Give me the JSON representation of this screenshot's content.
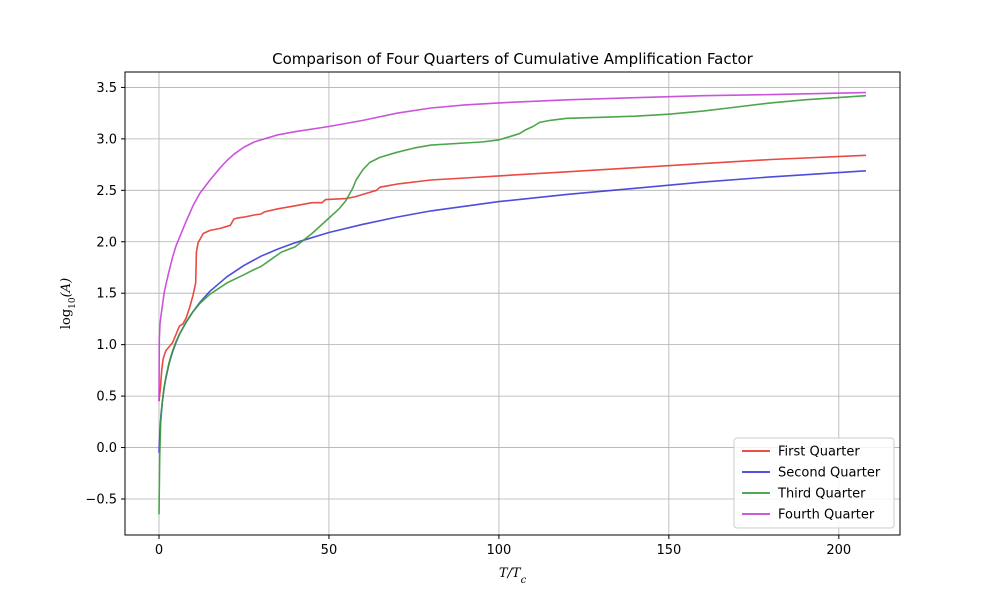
{
  "chart_data": {
    "type": "line",
    "title": "Comparison of Four Quarters of Cumulative Amplification Factor",
    "xlabel": "T/Tc",
    "ylabel": "log10(A)",
    "xlim": [
      -10,
      218
    ],
    "ylim": [
      -0.85,
      3.65
    ],
    "xticks": [
      0,
      50,
      100,
      150,
      200
    ],
    "yticks": [
      -0.5,
      0.0,
      0.5,
      1.0,
      1.5,
      2.0,
      2.5,
      3.0,
      3.5
    ],
    "ytick_labels": [
      "−0.5",
      "0.0",
      "0.5",
      "1.0",
      "1.5",
      "2.0",
      "2.5",
      "3.0",
      "3.5"
    ],
    "grid": true,
    "legend_position": "lower-right",
    "series": [
      {
        "name": "First Quarter",
        "color": "#e8362c",
        "x": [
          0,
          0.4,
          0.8,
          1.2,
          1.6,
          2,
          3,
          4,
          5,
          6,
          7,
          8,
          9,
          10,
          10.8,
          11.0,
          11.5,
          12,
          13,
          15,
          18,
          20,
          21,
          22,
          23,
          25,
          28,
          30,
          31,
          35,
          40,
          45,
          48,
          49,
          55,
          58,
          60,
          62,
          64,
          65,
          70,
          80,
          90,
          100,
          120,
          140,
          160,
          180,
          208
        ],
        "y": [
          0.45,
          0.58,
          0.75,
          0.86,
          0.9,
          0.94,
          0.98,
          1.02,
          1.1,
          1.18,
          1.2,
          1.26,
          1.36,
          1.48,
          1.6,
          1.9,
          1.99,
          2.02,
          2.08,
          2.11,
          2.13,
          2.15,
          2.16,
          2.22,
          2.23,
          2.24,
          2.26,
          2.27,
          2.29,
          2.32,
          2.35,
          2.38,
          2.38,
          2.41,
          2.42,
          2.44,
          2.46,
          2.48,
          2.5,
          2.53,
          2.56,
          2.6,
          2.62,
          2.64,
          2.68,
          2.72,
          2.76,
          2.8,
          2.84
        ]
      },
      {
        "name": "Second Quarter",
        "color": "#3a3ad8",
        "x": [
          0,
          0.3,
          0.6,
          1,
          1.5,
          2,
          3,
          4,
          5,
          6,
          8,
          10,
          12,
          15,
          20,
          25,
          30,
          35,
          40,
          50,
          60,
          70,
          80,
          100,
          120,
          140,
          160,
          180,
          208
        ],
        "y": [
          -0.05,
          0.18,
          0.32,
          0.45,
          0.58,
          0.67,
          0.82,
          0.93,
          1.02,
          1.1,
          1.22,
          1.32,
          1.41,
          1.52,
          1.66,
          1.77,
          1.86,
          1.93,
          1.99,
          2.09,
          2.17,
          2.24,
          2.3,
          2.39,
          2.46,
          2.52,
          2.58,
          2.63,
          2.69
        ]
      },
      {
        "name": "Third Quarter",
        "color": "#3a9c3a",
        "x": [
          0,
          0.2,
          0.5,
          1,
          1.5,
          2,
          3,
          4,
          5,
          6,
          8,
          10,
          12,
          15,
          20,
          25,
          28,
          30,
          33,
          36,
          40,
          45,
          50,
          53,
          55,
          57,
          58,
          60,
          62,
          65,
          70,
          75,
          80,
          90,
          95,
          100,
          103,
          106,
          108,
          110,
          112,
          115,
          120,
          130,
          140,
          150,
          160,
          170,
          180,
          190,
          208
        ],
        "y": [
          -0.65,
          -0.1,
          0.25,
          0.45,
          0.58,
          0.68,
          0.83,
          0.94,
          1.03,
          1.1,
          1.22,
          1.32,
          1.4,
          1.49,
          1.6,
          1.68,
          1.73,
          1.76,
          1.83,
          1.9,
          1.95,
          2.08,
          2.23,
          2.32,
          2.4,
          2.52,
          2.6,
          2.7,
          2.77,
          2.82,
          2.87,
          2.91,
          2.94,
          2.96,
          2.97,
          2.99,
          3.02,
          3.05,
          3.09,
          3.12,
          3.16,
          3.18,
          3.2,
          3.21,
          3.22,
          3.24,
          3.27,
          3.31,
          3.35,
          3.38,
          3.42
        ]
      },
      {
        "name": "Fourth Quarter",
        "color": "#c442d6",
        "x": [
          0,
          0.1,
          0.3,
          0.6,
          1,
          1.5,
          2,
          3,
          4,
          5,
          6,
          8,
          10,
          12,
          15,
          18,
          20,
          22,
          25,
          28,
          30,
          35,
          40,
          50,
          60,
          70,
          80,
          90,
          100,
          120,
          140,
          160,
          180,
          208
        ],
        "y": [
          0.45,
          1.05,
          1.2,
          1.28,
          1.38,
          1.5,
          1.58,
          1.72,
          1.85,
          1.96,
          2.04,
          2.2,
          2.35,
          2.47,
          2.6,
          2.72,
          2.79,
          2.85,
          2.92,
          2.97,
          2.99,
          3.04,
          3.07,
          3.12,
          3.18,
          3.25,
          3.3,
          3.33,
          3.35,
          3.38,
          3.4,
          3.42,
          3.43,
          3.45
        ]
      }
    ]
  }
}
